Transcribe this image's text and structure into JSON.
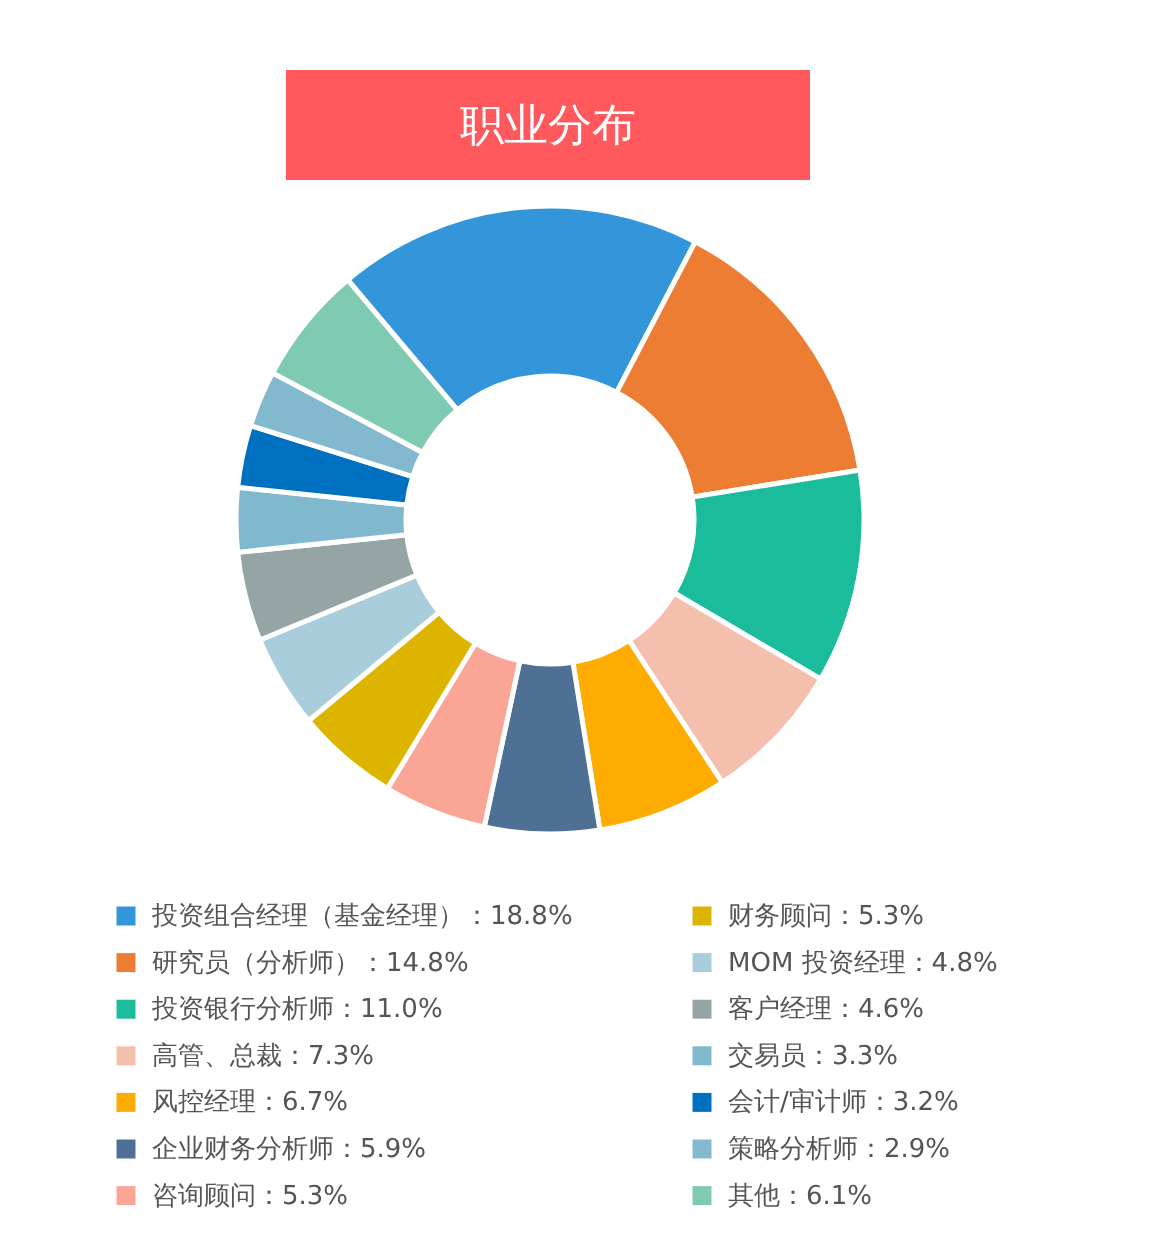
{
  "chart_data": {
    "type": "donut",
    "title": "职业分布",
    "categories": [
      "投资组合经理（基金经理）",
      "研究员（分析师）",
      "投资银行分析师",
      "高管、总裁",
      "风控经理",
      "企业财务分析师",
      "咨询顾问",
      "财务顾问",
      "MOM 投资经理",
      "客户经理",
      "交易员",
      "会计/审计师",
      "策略分析师",
      "其他"
    ],
    "values": [
      18.8,
      14.8,
      11.0,
      7.3,
      6.7,
      5.9,
      5.3,
      5.3,
      4.8,
      4.6,
      3.3,
      3.2,
      2.9,
      6.1
    ],
    "value_labels": [
      "18.8%",
      "14.8%",
      "11.0%",
      "7.3%",
      "6.7%",
      "5.9%",
      "5.3%",
      "5.3%",
      "4.8%",
      "4.6%",
      "3.3%",
      "3.2%",
      "2.9%",
      "6.1%"
    ],
    "colors": [
      "#3396db",
      "#ed7d32",
      "#1bbc9b",
      "#f4bfac",
      "#feac00",
      "#4e7094",
      "#fba596",
      "#ddb500",
      "#aacddc",
      "#95a5a5",
      "#80b9cd",
      "#0070c0",
      "#82b9cf",
      "#7ecab2"
    ],
    "legend": "bottom"
  }
}
